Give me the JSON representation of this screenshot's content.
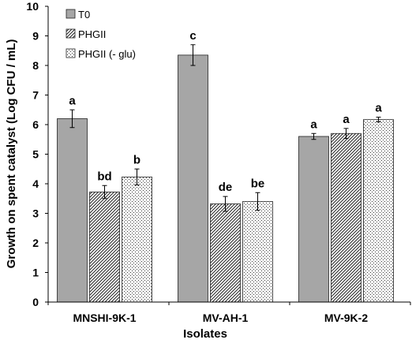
{
  "chart_data": {
    "type": "bar",
    "title": "",
    "xlabel": "Isolates",
    "ylabel": "Growth on spent catalyst  (Log CFU / mL)",
    "ylim": [
      0,
      10
    ],
    "yticks": [
      0,
      1,
      2,
      3,
      4,
      5,
      6,
      7,
      8,
      9,
      10
    ],
    "grid": false,
    "legend_position": "top-left",
    "categories": [
      "MNSHI-9K-1",
      "MV-AH-1",
      "MV-9K-2"
    ],
    "series": [
      {
        "name": "T0",
        "fill": "#a6a6a6",
        "pattern": "solid",
        "values": [
          6.2,
          8.35,
          5.6
        ],
        "errors": [
          0.3,
          0.35,
          0.1
        ],
        "labels": [
          "a",
          "c",
          "a"
        ]
      },
      {
        "name": "PHGII",
        "fill": "#ffffff",
        "pattern": "diagonal-hatch",
        "values": [
          3.72,
          3.32,
          5.7
        ],
        "errors": [
          0.22,
          0.25,
          0.17
        ],
        "labels": [
          "bd",
          "de",
          "a"
        ]
      },
      {
        "name": "PHGII  (- glu)",
        "fill": "#ffffff",
        "pattern": "dots",
        "values": [
          4.23,
          3.4,
          6.17
        ],
        "errors": [
          0.27,
          0.3,
          0.08
        ],
        "labels": [
          "b",
          "be",
          "a"
        ]
      }
    ]
  }
}
